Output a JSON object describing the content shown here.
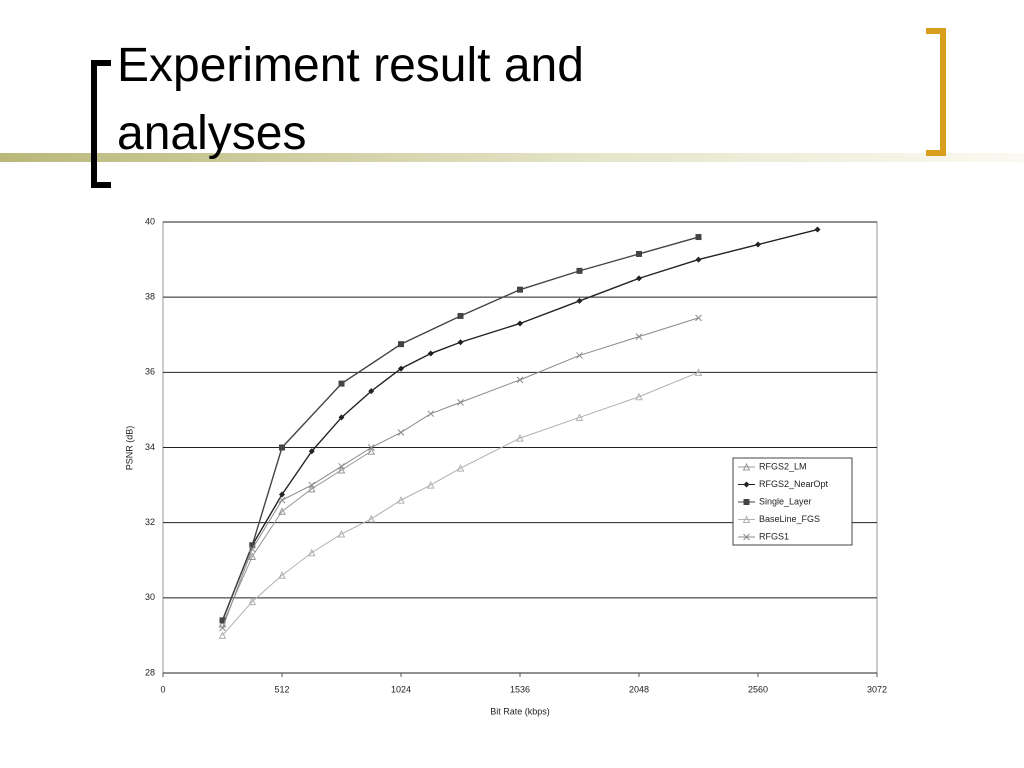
{
  "slide": {
    "title": "Experiment result and analyses"
  },
  "chart_data": {
    "type": "line",
    "y_label": "PSNR (dB)",
    "x_label": "Bit Rate (kbps)",
    "xlim": [
      0,
      3072
    ],
    "xticks": [
      0,
      512,
      1024,
      1536,
      2048,
      2560,
      3072
    ],
    "ylim": [
      28,
      40
    ],
    "yticks": [
      28,
      30,
      32,
      34,
      36,
      38,
      40
    ],
    "grid": true,
    "series": [
      {
        "name": "RFGS2_LM",
        "color": "#999999",
        "marker": "triangle",
        "x": [
          256,
          384,
          512,
          640,
          768,
          896
        ],
        "values": [
          29.3,
          31.1,
          32.3,
          32.9,
          33.4,
          33.9
        ]
      },
      {
        "name": "RFGS2_NearOpt",
        "color": "#222222",
        "marker": "diamond",
        "x": [
          256,
          384,
          512,
          640,
          768,
          896,
          1024,
          1152,
          1280,
          1536,
          1792,
          2048,
          2304,
          2560,
          2816
        ],
        "values": [
          29.4,
          31.4,
          32.75,
          33.9,
          34.8,
          35.5,
          36.1,
          36.5,
          36.8,
          37.3,
          37.9,
          38.5,
          39.0,
          39.4,
          39.8
        ]
      },
      {
        "name": "Single_Layer",
        "color": "#444444",
        "marker": "square",
        "x": [
          256,
          384,
          512,
          768,
          1024,
          1280,
          1536,
          1792,
          2048,
          2304
        ],
        "values": [
          29.4,
          31.4,
          34.0,
          35.7,
          36.75,
          37.5,
          38.2,
          38.7,
          39.15,
          39.6
        ]
      },
      {
        "name": "BaseLine_FGS",
        "color": "#b0b0b0",
        "marker": "triangle",
        "x": [
          256,
          384,
          512,
          640,
          768,
          896,
          1024,
          1152,
          1280,
          1536,
          1792,
          2048,
          2304
        ],
        "values": [
          29.0,
          29.9,
          30.6,
          31.2,
          31.7,
          32.1,
          32.6,
          33.0,
          33.45,
          34.25,
          34.8,
          35.35,
          36.0
        ]
      },
      {
        "name": "RFGS1",
        "color": "#8a8a8a",
        "marker": "x",
        "x": [
          256,
          384,
          512,
          640,
          768,
          896,
          1024,
          1152,
          1280,
          1536,
          1792,
          2048,
          2304
        ],
        "values": [
          29.2,
          31.3,
          32.6,
          33.0,
          33.5,
          34.0,
          34.4,
          34.9,
          35.2,
          35.8,
          36.45,
          36.95,
          37.45
        ]
      }
    ]
  }
}
